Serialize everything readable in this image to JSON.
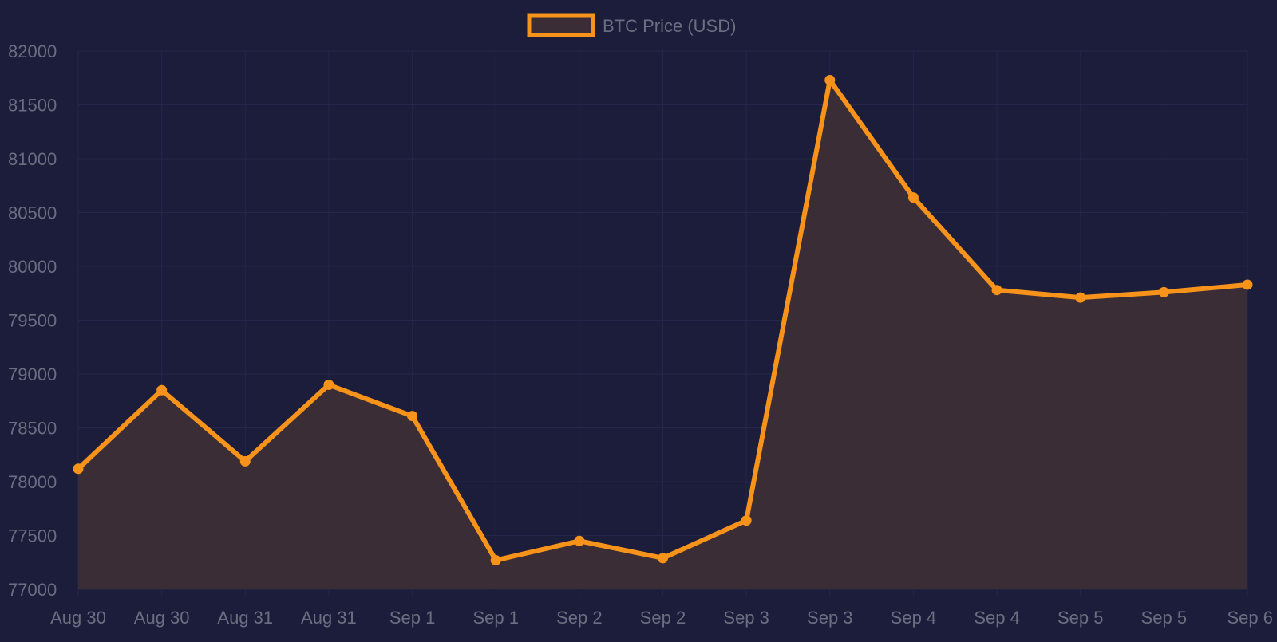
{
  "colors": {
    "background": "#1b1d3b",
    "line": "#f7931a",
    "fill": "#3b2d35",
    "grid": "#24264a",
    "text": "#6b6e80"
  },
  "chart_data": {
    "type": "area",
    "title": "",
    "xlabel": "",
    "ylabel": "",
    "categories": [
      "Aug 30",
      "Aug 30",
      "Aug 31",
      "Aug 31",
      "Sep 1",
      "Sep 1",
      "Sep 2",
      "Sep 2",
      "Sep 3",
      "Sep 3",
      "Sep 4",
      "Sep 4",
      "Sep 5",
      "Sep 5",
      "Sep 6"
    ],
    "series": [
      {
        "name": "BTC Price (USD)",
        "values": [
          78120,
          78850,
          78190,
          78900,
          78610,
          77270,
          77450,
          77290,
          77640,
          81730,
          80640,
          79780,
          79710,
          79760,
          79830
        ]
      }
    ],
    "ylim": [
      77000,
      82000
    ],
    "yticks": [
      77000,
      77500,
      78000,
      78500,
      79000,
      79500,
      80000,
      80500,
      81000,
      81500,
      82000
    ],
    "grid": true,
    "legend_position": "top-center"
  }
}
